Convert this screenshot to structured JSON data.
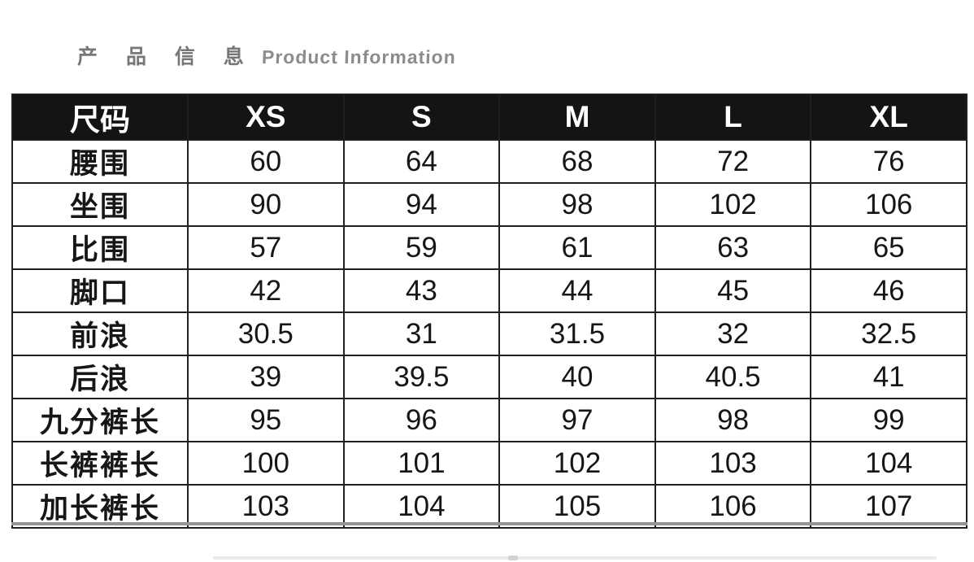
{
  "title": {
    "cn": "产 品 信 息",
    "en": "Product Information"
  },
  "colors": {
    "header_bg": "#141414",
    "header_text": "#ffffff",
    "border": "#1f1f1f",
    "body_text": "#161616",
    "title_gray": "#7d7d7d",
    "bottom_bar": "#949494"
  },
  "chart_data": {
    "type": "table",
    "title": "产品信息 Product Information",
    "columns": [
      "尺码",
      "XS",
      "S",
      "M",
      "L",
      "XL"
    ],
    "rows": [
      {
        "label": "腰围",
        "values": [
          "60",
          "64",
          "68",
          "72",
          "76"
        ]
      },
      {
        "label": "坐围",
        "values": [
          "90",
          "94",
          "98",
          "102",
          "106"
        ]
      },
      {
        "label": "比围",
        "values": [
          "57",
          "59",
          "61",
          "63",
          "65"
        ]
      },
      {
        "label": "脚口",
        "values": [
          "42",
          "43",
          "44",
          "45",
          "46"
        ]
      },
      {
        "label": "前浪",
        "values": [
          "30.5",
          "31",
          "31.5",
          "32",
          "32.5"
        ]
      },
      {
        "label": "后浪",
        "values": [
          "39",
          "39.5",
          "40",
          "40.5",
          "41"
        ]
      },
      {
        "label": "九分裤长",
        "values": [
          "95",
          "96",
          "97",
          "98",
          "99"
        ]
      },
      {
        "label": "长裤裤长",
        "values": [
          "100",
          "101",
          "102",
          "103",
          "104"
        ]
      },
      {
        "label": "加长裤长",
        "values": [
          "103",
          "104",
          "105",
          "106",
          "107"
        ]
      }
    ]
  }
}
